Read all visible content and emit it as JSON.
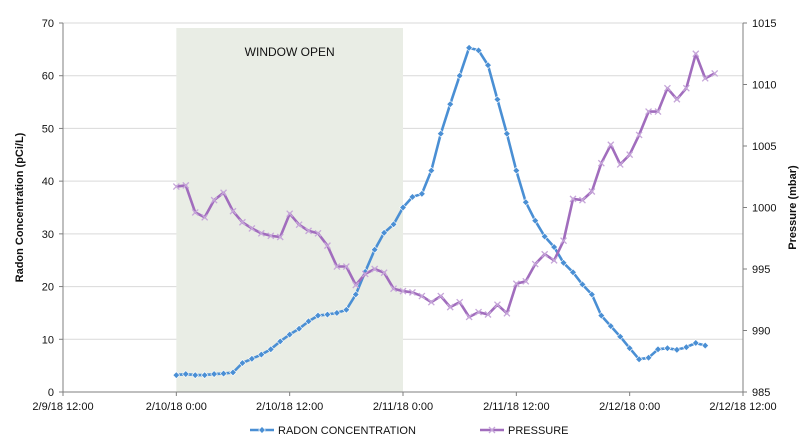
{
  "chart_data": {
    "type": "line",
    "annotation": "WINDOW OPEN",
    "x_tick_labels": [
      "2/9/18 12:00",
      "2/10/18 0:00",
      "2/10/18 12:00",
      "2/11/18 0:00",
      "2/11/18 12:00",
      "2/12/18 0:00",
      "2/12/18 12:00"
    ],
    "xlim": [
      "2/9/18 12:00",
      "2/12/18 12:00"
    ],
    "y_left": {
      "label": "Radon Concentration (pCi/L)",
      "lim": [
        0,
        70
      ],
      "ticks": [
        "0",
        "10",
        "20",
        "30",
        "40",
        "50",
        "60",
        "70"
      ]
    },
    "y_right": {
      "label": "Pressure (mbar)",
      "lim": [
        985,
        1015
      ],
      "ticks": [
        "985",
        "990",
        "995",
        "1000",
        "1005",
        "1010",
        "1015"
      ]
    },
    "shaded_region": {
      "label": "WINDOW OPEN",
      "x_start": "2/10/18 0:00",
      "x_end": "2/11/18 0:00",
      "color": "#e9ede5"
    },
    "legend_position": "bottom",
    "grid": "horizontal",
    "series": [
      {
        "name": "RADON CONCENTRATION",
        "axis": "left",
        "color": "#4a8fd4",
        "points": [
          [
            "2/10/18 0:00",
            3.2
          ],
          [
            "2/10/18 1:00",
            3.4
          ],
          [
            "2/10/18 2:00",
            3.2
          ],
          [
            "2/10/18 3:00",
            3.2
          ],
          [
            "2/10/18 4:00",
            3.4
          ],
          [
            "2/10/18 5:00",
            3.5
          ],
          [
            "2/10/18 6:00",
            3.7
          ],
          [
            "2/10/18 7:00",
            5.5
          ],
          [
            "2/10/18 8:00",
            6.3
          ],
          [
            "2/10/18 9:00",
            7.1
          ],
          [
            "2/10/18 10:00",
            8.1
          ],
          [
            "2/10/18 11:00",
            9.6
          ],
          [
            "2/10/18 12:00",
            10.9
          ],
          [
            "2/10/18 13:00",
            12.0
          ],
          [
            "2/10/18 14:00",
            13.4
          ],
          [
            "2/10/18 15:00",
            14.5
          ],
          [
            "2/10/18 16:00",
            14.7
          ],
          [
            "2/10/18 17:00",
            15.0
          ],
          [
            "2/10/18 18:00",
            15.6
          ],
          [
            "2/10/18 19:00",
            18.5
          ],
          [
            "2/10/18 20:00",
            22.8
          ],
          [
            "2/10/18 21:00",
            27.0
          ],
          [
            "2/10/18 22:00",
            30.2
          ],
          [
            "2/10/18 23:00",
            31.8
          ],
          [
            "2/11/18 0:00",
            35.0
          ],
          [
            "2/11/18 1:00",
            37.0
          ],
          [
            "2/11/18 2:00",
            37.6
          ],
          [
            "2/11/18 3:00",
            42.0
          ],
          [
            "2/11/18 4:00",
            49.0
          ],
          [
            "2/11/18 5:00",
            54.6
          ],
          [
            "2/11/18 6:00",
            60.0
          ],
          [
            "2/11/18 7:00",
            65.3
          ],
          [
            "2/11/18 8:00",
            64.8
          ],
          [
            "2/11/18 9:00",
            62.0
          ],
          [
            "2/11/18 10:00",
            55.5
          ],
          [
            "2/11/18 11:00",
            49.0
          ],
          [
            "2/11/18 12:00",
            42.0
          ],
          [
            "2/11/18 13:00",
            36.0
          ],
          [
            "2/11/18 14:00",
            32.5
          ],
          [
            "2/11/18 15:00",
            29.5
          ],
          [
            "2/11/18 16:00",
            27.5
          ],
          [
            "2/11/18 17:00",
            24.5
          ],
          [
            "2/11/18 18:00",
            22.7
          ],
          [
            "2/11/18 19:00",
            20.4
          ],
          [
            "2/11/18 20:00",
            18.5
          ],
          [
            "2/11/18 21:00",
            14.5
          ],
          [
            "2/11/18 22:00",
            12.5
          ],
          [
            "2/11/18 23:00",
            10.5
          ],
          [
            "2/12/18 0:00",
            8.3
          ],
          [
            "2/12/18 1:00",
            6.2
          ],
          [
            "2/12/18 2:00",
            6.5
          ],
          [
            "2/12/18 3:00",
            8.1
          ],
          [
            "2/12/18 4:00",
            8.3
          ],
          [
            "2/12/18 5:00",
            8.0
          ],
          [
            "2/12/18 6:00",
            8.5
          ],
          [
            "2/12/18 7:00",
            9.3
          ],
          [
            "2/12/18 8:00",
            8.8
          ]
        ]
      },
      {
        "name": "PRESSURE",
        "axis": "right",
        "color": "#a16dbd",
        "points": [
          [
            "2/10/18 0:00",
            1001.7
          ],
          [
            "2/10/18 1:00",
            1001.8
          ],
          [
            "2/10/18 2:00",
            999.6
          ],
          [
            "2/10/18 3:00",
            999.2
          ],
          [
            "2/10/18 4:00",
            1000.6
          ],
          [
            "2/10/18 5:00",
            1001.2
          ],
          [
            "2/10/18 6:00",
            999.7
          ],
          [
            "2/10/18 7:00",
            998.8
          ],
          [
            "2/10/18 8:00",
            998.3
          ],
          [
            "2/10/18 9:00",
            997.9
          ],
          [
            "2/10/18 10:00",
            997.7
          ],
          [
            "2/10/18 11:00",
            997.6
          ],
          [
            "2/10/18 12:00",
            999.5
          ],
          [
            "2/10/18 13:00",
            998.6
          ],
          [
            "2/10/18 14:00",
            998.1
          ],
          [
            "2/10/18 15:00",
            997.9
          ],
          [
            "2/10/18 16:00",
            996.9
          ],
          [
            "2/10/18 17:00",
            995.2
          ],
          [
            "2/10/18 18:00",
            995.2
          ],
          [
            "2/10/18 19:00",
            993.7
          ],
          [
            "2/10/18 20:00",
            994.6
          ],
          [
            "2/10/18 21:00",
            995.0
          ],
          [
            "2/10/18 22:00",
            994.7
          ],
          [
            "2/10/18 23:00",
            993.4
          ],
          [
            "2/11/18 0:00",
            993.2
          ],
          [
            "2/11/18 1:00",
            993.1
          ],
          [
            "2/11/18 2:00",
            992.8
          ],
          [
            "2/11/18 3:00",
            992.3
          ],
          [
            "2/11/18 4:00",
            992.8
          ],
          [
            "2/11/18 5:00",
            991.9
          ],
          [
            "2/11/18 6:00",
            992.3
          ],
          [
            "2/11/18 7:00",
            991.1
          ],
          [
            "2/11/18 8:00",
            991.5
          ],
          [
            "2/11/18 9:00",
            991.3
          ],
          [
            "2/11/18 10:00",
            992.1
          ],
          [
            "2/11/18 11:00",
            991.4
          ],
          [
            "2/11/18 12:00",
            993.8
          ],
          [
            "2/11/18 13:00",
            994.0
          ],
          [
            "2/11/18 14:00",
            995.4
          ],
          [
            "2/11/18 15:00",
            996.2
          ],
          [
            "2/11/18 16:00",
            995.7
          ],
          [
            "2/11/18 17:00",
            997.3
          ],
          [
            "2/11/18 18:00",
            1000.7
          ],
          [
            "2/11/18 19:00",
            1000.6
          ],
          [
            "2/11/18 20:00",
            1001.3
          ],
          [
            "2/11/18 21:00",
            1003.6
          ],
          [
            "2/11/18 22:00",
            1005.1
          ],
          [
            "2/11/18 23:00",
            1003.5
          ],
          [
            "2/12/18 0:00",
            1004.3
          ],
          [
            "2/12/18 1:00",
            1005.9
          ],
          [
            "2/12/18 2:00",
            1007.8
          ],
          [
            "2/12/18 3:00",
            1007.8
          ],
          [
            "2/12/18 4:00",
            1009.7
          ],
          [
            "2/12/18 5:00",
            1008.8
          ],
          [
            "2/12/18 6:00",
            1009.7
          ],
          [
            "2/12/18 7:00",
            1012.5
          ],
          [
            "2/12/18 8:00",
            1010.5
          ],
          [
            "2/12/18 9:00",
            1010.9
          ]
        ]
      }
    ]
  }
}
